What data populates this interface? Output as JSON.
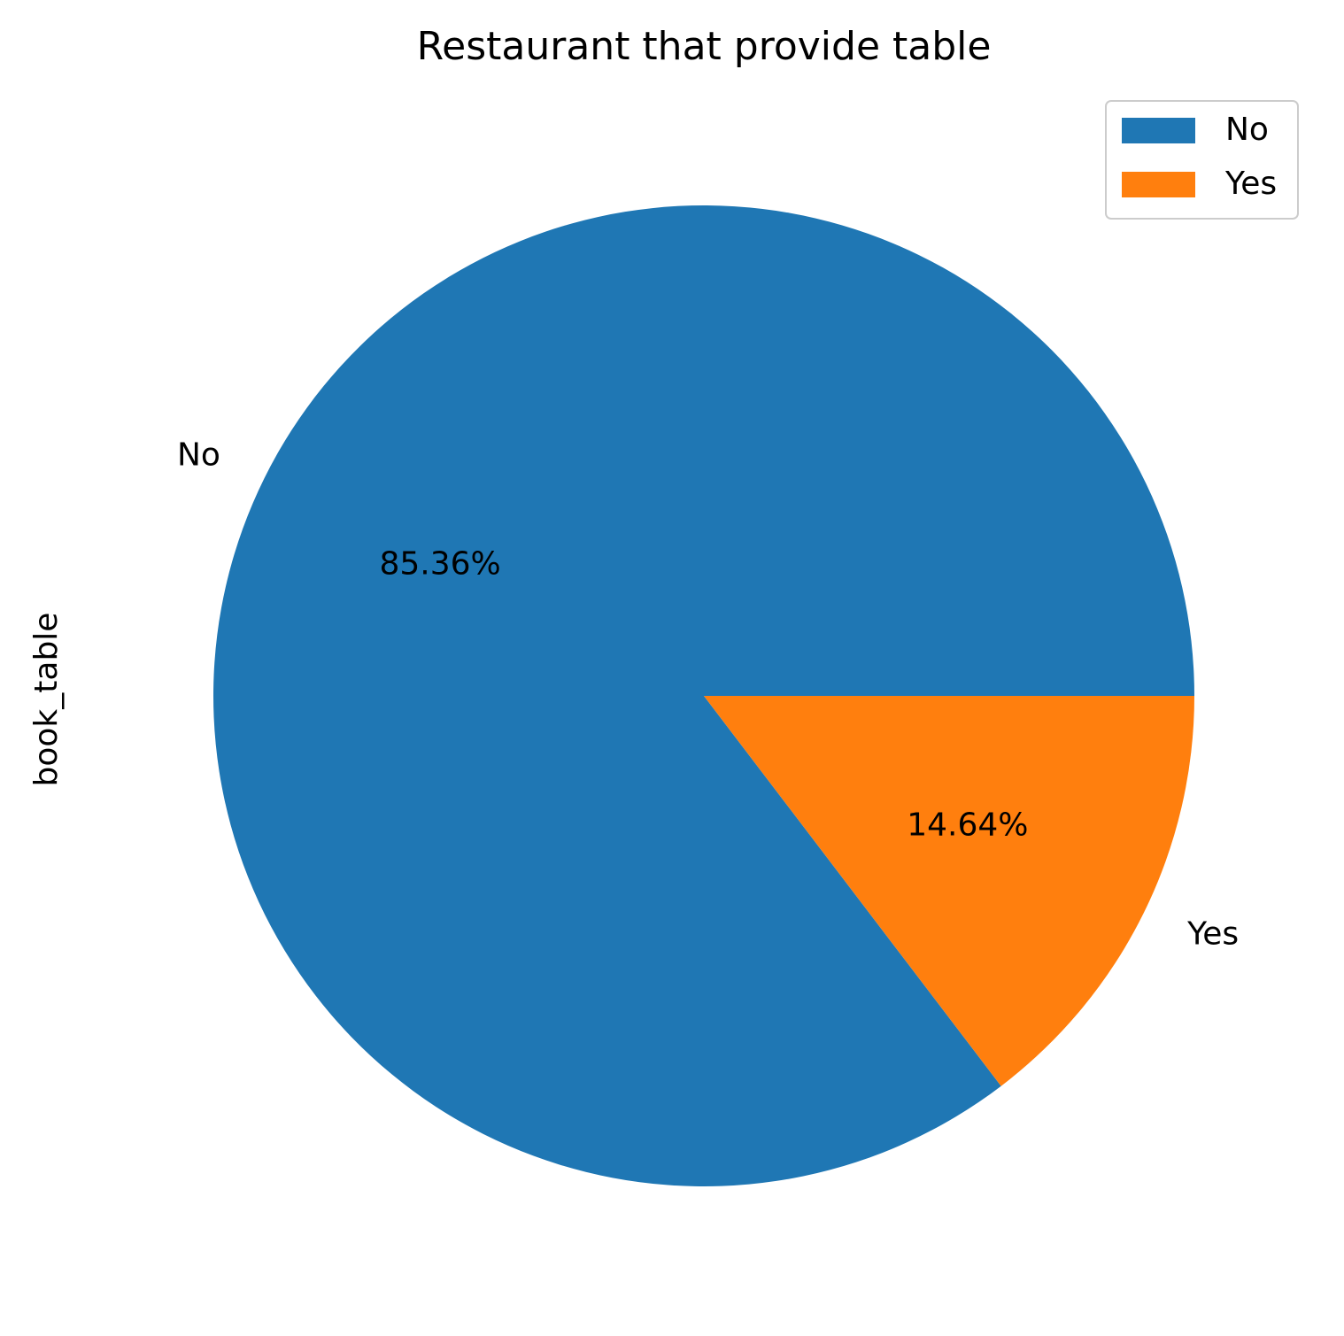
{
  "chart_data": {
    "type": "pie",
    "title": "Restaurant that provide table",
    "ylabel": "book_table",
    "categories": [
      "No",
      "Yes"
    ],
    "values": [
      85.36,
      14.64
    ],
    "value_labels": [
      "85.36%",
      "14.64%"
    ],
    "colors": [
      "#1f77b4",
      "#ff7f0e"
    ],
    "start_angle_deg": 0,
    "direction": "counterclockwise",
    "legend": {
      "placement": "top-right",
      "entries": [
        "No",
        "Yes"
      ]
    }
  }
}
